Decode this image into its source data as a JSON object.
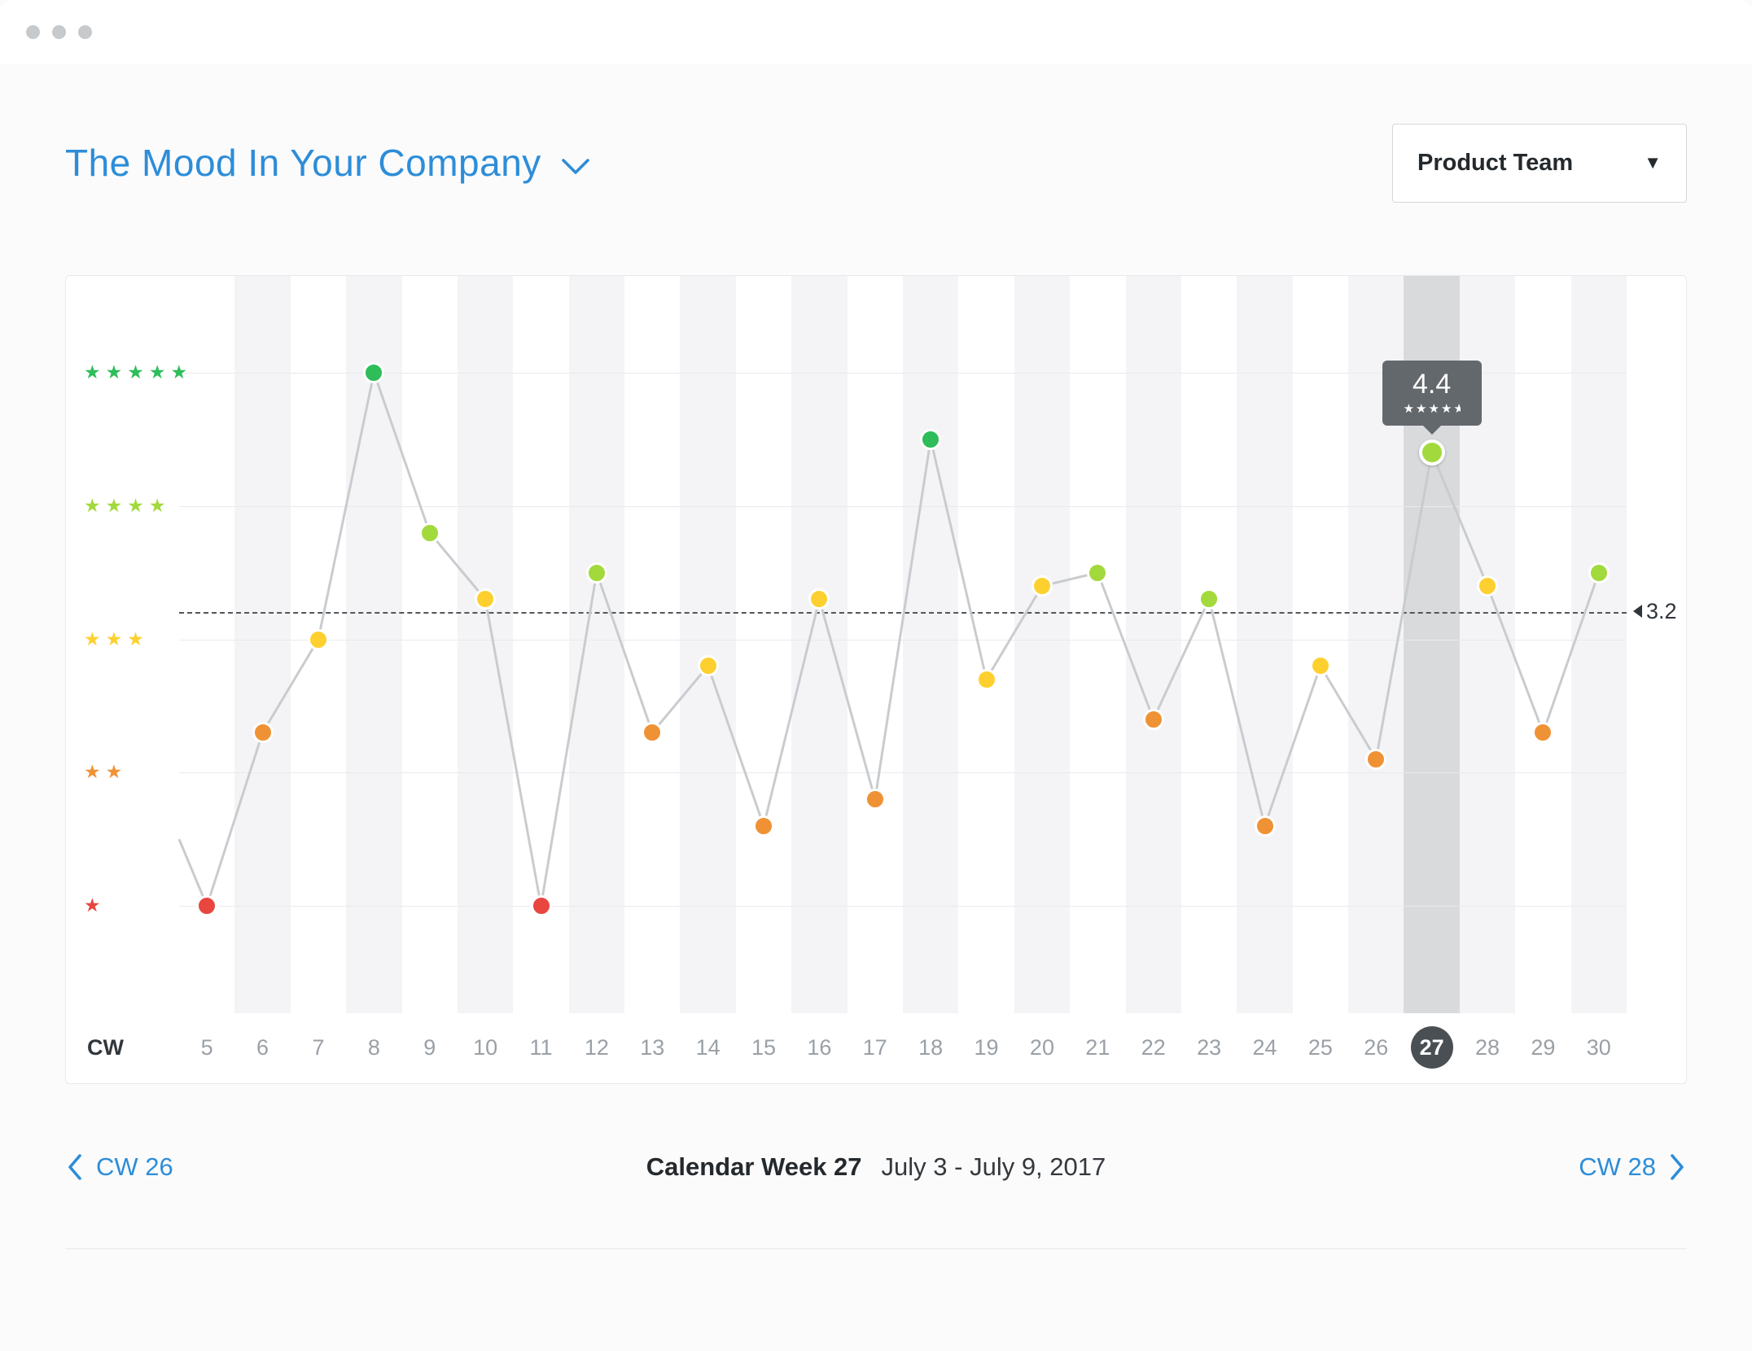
{
  "window": {
    "controls_count": 3
  },
  "header": {
    "title": "The Mood In Your Company",
    "team_selector": {
      "value": "Product Team"
    }
  },
  "chart_data": {
    "type": "line",
    "title": "The Mood In Your Company",
    "x_axis_label": "CW",
    "x_range": [
      5,
      30
    ],
    "y_axis": {
      "type": "star-rating",
      "ylim": [
        1,
        5
      ],
      "rows": [
        {
          "stars": 5,
          "color_key": "green"
        },
        {
          "stars": 4,
          "color_key": "lightgreen"
        },
        {
          "stars": 3,
          "color_key": "yellow"
        },
        {
          "stars": 2,
          "color_key": "orange"
        },
        {
          "stars": 1,
          "color_key": "red"
        }
      ]
    },
    "average": {
      "value": 3.2,
      "label": "3.2"
    },
    "lead_in_value": 1.5,
    "points": [
      {
        "week": 5,
        "value": 1.0,
        "color_key": "red"
      },
      {
        "week": 6,
        "value": 2.3,
        "color_key": "orange"
      },
      {
        "week": 7,
        "value": 3.0,
        "color_key": "yellow"
      },
      {
        "week": 8,
        "value": 5.0,
        "color_key": "green"
      },
      {
        "week": 9,
        "value": 3.8,
        "color_key": "lightgreen"
      },
      {
        "week": 10,
        "value": 3.3,
        "color_key": "yellow"
      },
      {
        "week": 11,
        "value": 1.0,
        "color_key": "red"
      },
      {
        "week": 12,
        "value": 3.5,
        "color_key": "lightgreen"
      },
      {
        "week": 13,
        "value": 2.3,
        "color_key": "orange"
      },
      {
        "week": 14,
        "value": 2.8,
        "color_key": "yellow"
      },
      {
        "week": 15,
        "value": 1.6,
        "color_key": "orange"
      },
      {
        "week": 16,
        "value": 3.3,
        "color_key": "yellow"
      },
      {
        "week": 17,
        "value": 1.8,
        "color_key": "orange"
      },
      {
        "week": 18,
        "value": 4.5,
        "color_key": "green"
      },
      {
        "week": 19,
        "value": 2.7,
        "color_key": "yellow"
      },
      {
        "week": 20,
        "value": 3.4,
        "color_key": "yellow"
      },
      {
        "week": 21,
        "value": 3.5,
        "color_key": "lightgreen"
      },
      {
        "week": 22,
        "value": 2.4,
        "color_key": "orange"
      },
      {
        "week": 23,
        "value": 3.3,
        "color_key": "lightgreen"
      },
      {
        "week": 24,
        "value": 1.6,
        "color_key": "orange"
      },
      {
        "week": 25,
        "value": 2.8,
        "color_key": "yellow"
      },
      {
        "week": 26,
        "value": 2.1,
        "color_key": "orange"
      },
      {
        "week": 27,
        "value": 4.4,
        "color_key": "lightgreen"
      },
      {
        "week": 28,
        "value": 3.4,
        "color_key": "yellow"
      },
      {
        "week": 29,
        "value": 2.3,
        "color_key": "orange"
      },
      {
        "week": 30,
        "value": 3.5,
        "color_key": "lightgreen"
      }
    ],
    "selected": {
      "week": 27,
      "value": 4.4,
      "label": "4.4",
      "stars": 4.5
    },
    "palette": {
      "green": "#2ebd59",
      "lightgreen": "#a2d93c",
      "yellow": "#fdd02f",
      "orange": "#ef9235",
      "red": "#e8463f"
    },
    "styles": {
      "line_color": "#c9ccce",
      "grid_color": "#e9eaec",
      "stripe_color": "#f4f4f6",
      "highlight_color": "#d8dadc",
      "axis_label_color": "#9aa0a6",
      "selected_badge_bg": "#4a4f54",
      "tooltip_bg": "#63686d",
      "accent_blue": "#2d8dd8"
    }
  },
  "footer_nav": {
    "prev_label": "CW 26",
    "current_week": "Calendar Week 27",
    "date_range": "July 3 - July 9, 2017",
    "next_label": "CW 28"
  }
}
